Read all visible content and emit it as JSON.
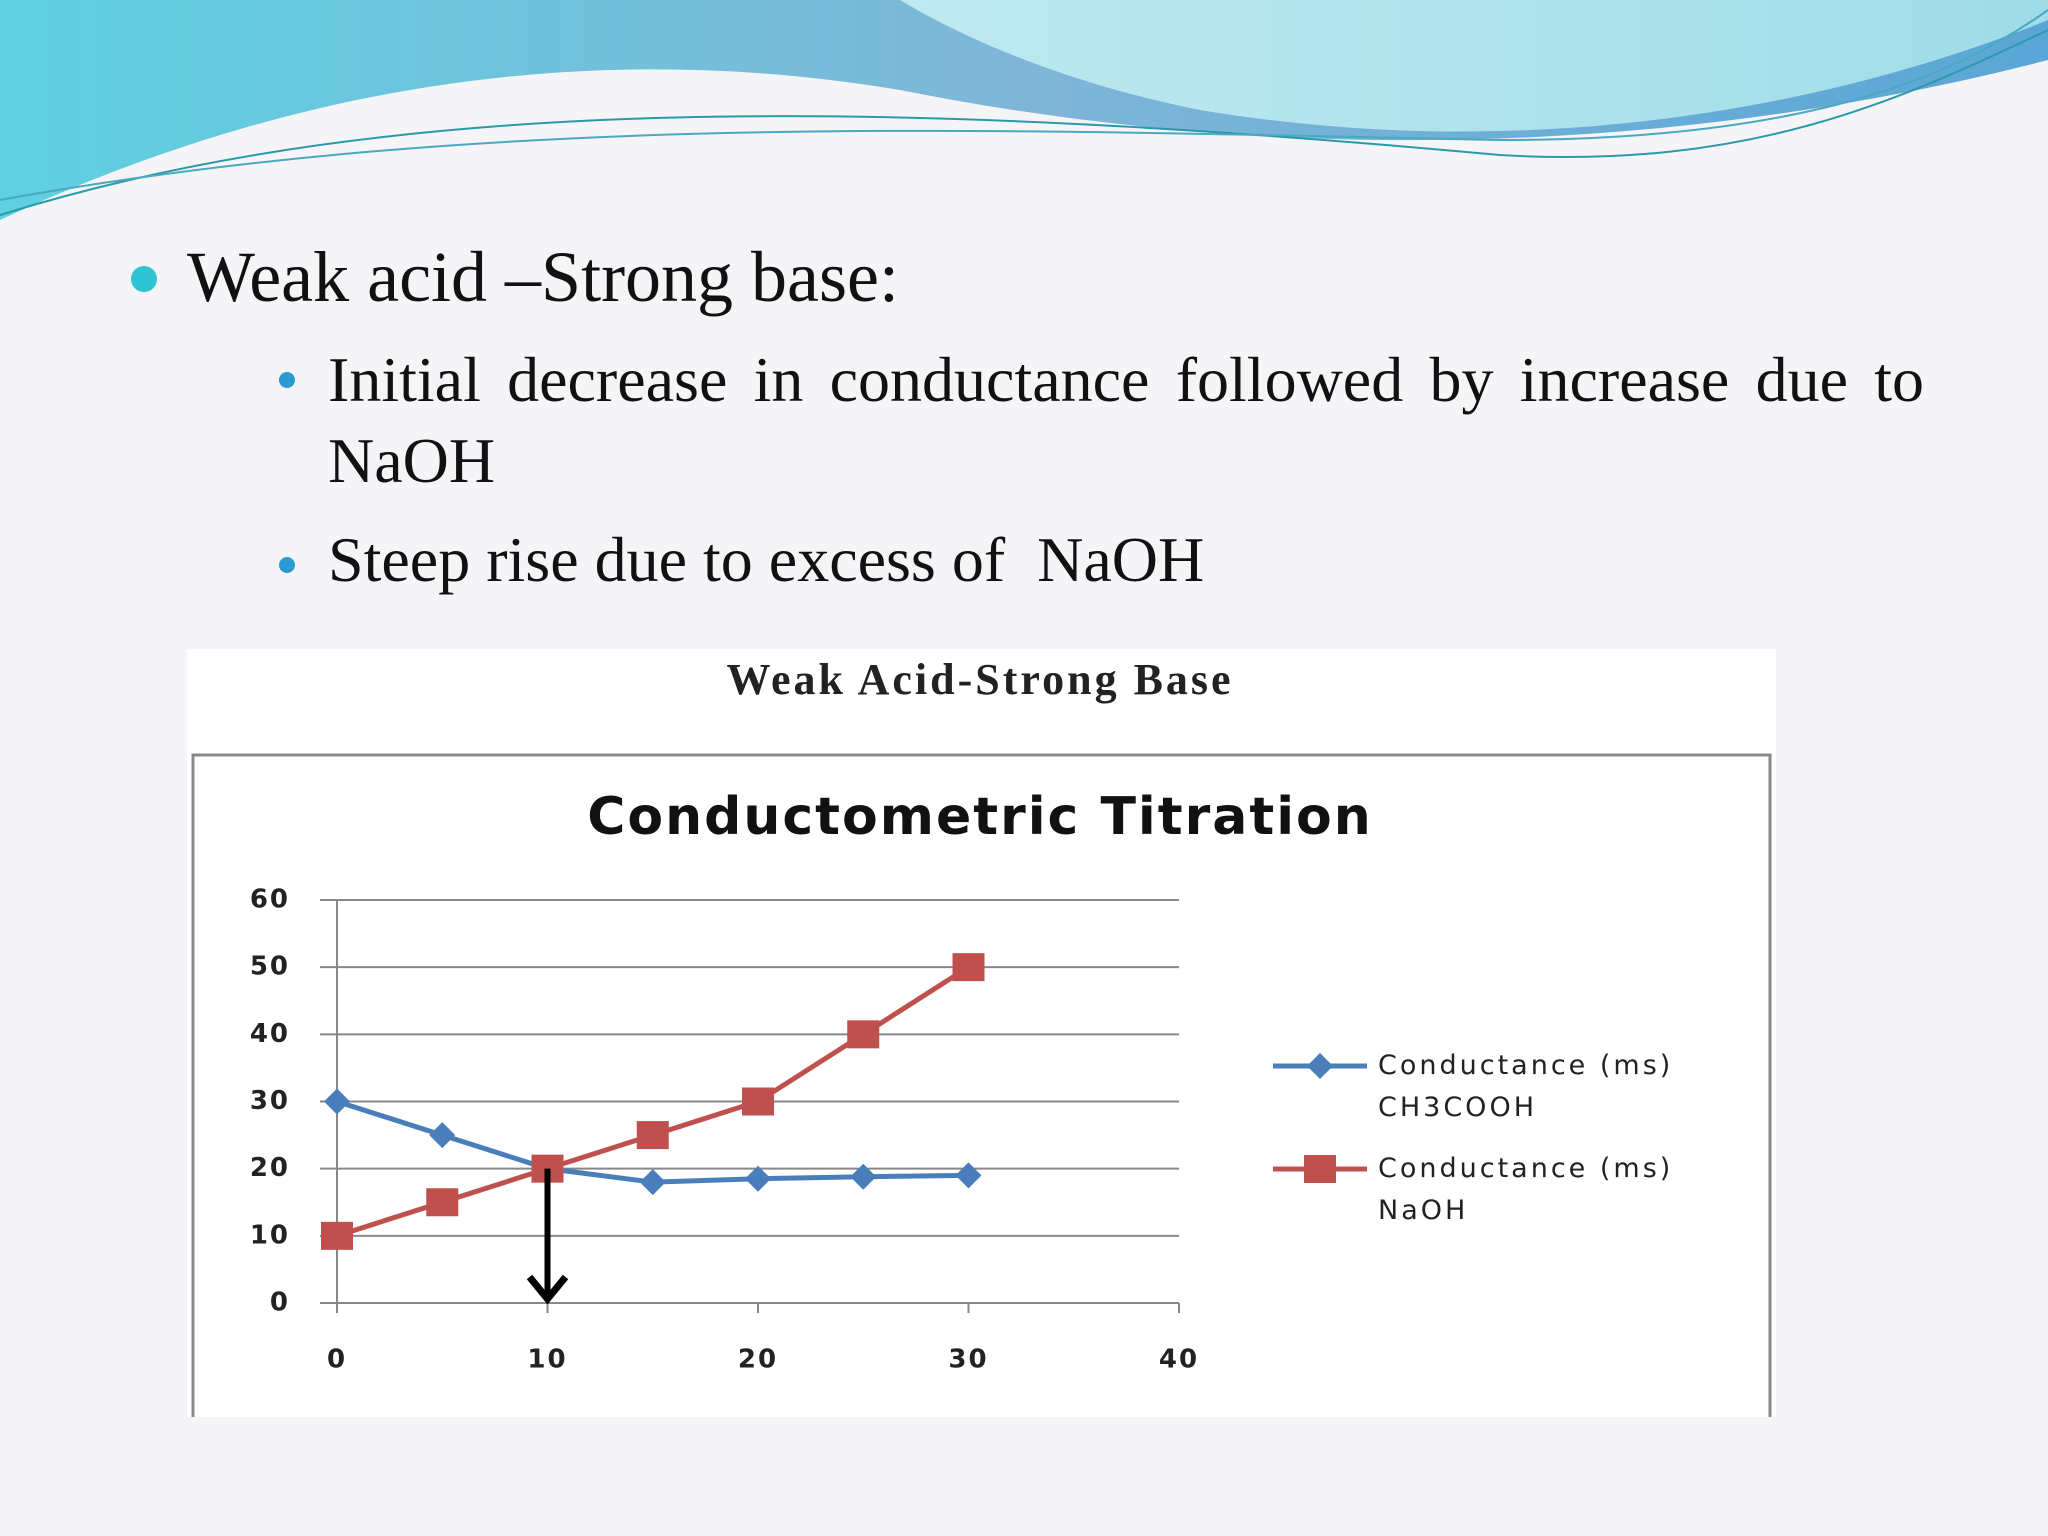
{
  "slide": {
    "heading": "Weak acid –Strong base:",
    "bullets": [
      "Initial decrease  in conductance followed by increase due to NaOH",
      "Steep rise due to excess of  NaOH"
    ],
    "figure_title": "Weak Acid-Strong Base"
  },
  "chart_data": {
    "type": "line",
    "title": "Conductometric Titration",
    "x": [
      0,
      5,
      10,
      15,
      20,
      25,
      30
    ],
    "series": [
      {
        "name": "Conductance (ms) CH3COOH",
        "color": "#4a7ebb",
        "marker": "diamond",
        "values": [
          30,
          25,
          20,
          18,
          18.5,
          18.8,
          19
        ]
      },
      {
        "name": "Conductance (ms) NaOH",
        "color": "#c0504d",
        "marker": "square",
        "values": [
          10,
          15,
          20,
          25,
          30,
          40,
          50
        ]
      }
    ],
    "xlim": [
      0,
      40
    ],
    "xticks": [
      0,
      10,
      20,
      30,
      40
    ],
    "ylim": [
      0,
      60
    ],
    "yticks": [
      0,
      10,
      20,
      30,
      40,
      50,
      60
    ],
    "grid": true,
    "legend": "right",
    "arrow": {
      "x": 10,
      "y": [
        20,
        0
      ]
    }
  }
}
